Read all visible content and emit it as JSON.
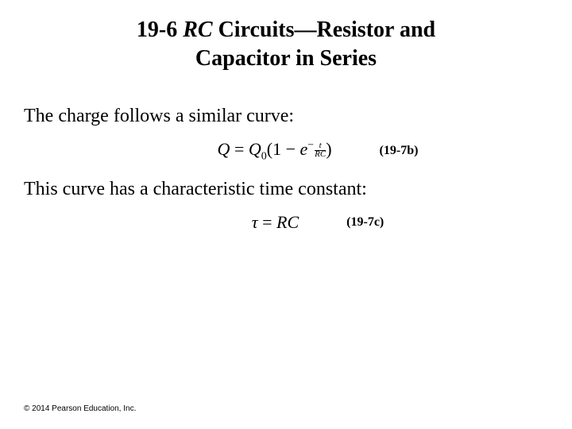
{
  "title": {
    "section": "19-6",
    "rc": "RC",
    "rest1": " Circuits—Resistor and",
    "rest2": "Capacitor in Series"
  },
  "paragraph1": "The charge follows a similar curve:",
  "equation1": {
    "Q": "Q",
    "eq": "  =  ",
    "Q0": "Q",
    "sub0": "0",
    "lparen": "(1  −  ",
    "e": "e",
    "exp_minus": "−",
    "exp_num": "t",
    "exp_den": "RC",
    "rparen": ")",
    "label": "(19-7b)"
  },
  "paragraph2": "This curve has a characteristic time constant:",
  "equation2": {
    "tau": "τ",
    "eq": "  =  ",
    "rhs": "RC",
    "label": "(19-7c)"
  },
  "copyright": "© 2014 Pearson Education, Inc."
}
